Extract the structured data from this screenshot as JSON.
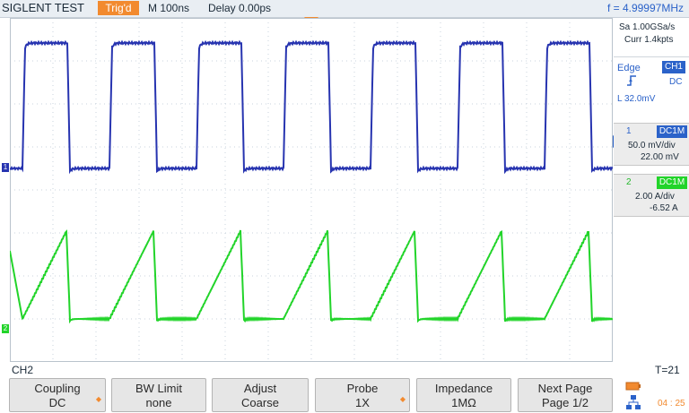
{
  "header": {
    "brand": "SIGLENT TEST",
    "trigger_state": "Trig'd",
    "timebase": "M 100ns",
    "delay": "Delay 0.00ps",
    "frequency": "f = 4.99997MHz"
  },
  "acquisition": {
    "sample_rate": "Sa 1.00GSa/s",
    "memory": "Curr 1.4kpts"
  },
  "trigger": {
    "type": "Edge",
    "source": "CH1",
    "coupling": "DC",
    "level": "L  32.0mV"
  },
  "channels": [
    {
      "number": "1",
      "coupling": "DC1M",
      "scale": "50.0 mV/div",
      "offset": "22.00 mV",
      "color": "#2734b0"
    },
    {
      "number": "2",
      "coupling": "DC1M",
      "scale": "2.00 A/div",
      "offset": "-6.52 A",
      "color": "#22d42a"
    }
  ],
  "colors": {
    "accent": "#f28a2f",
    "ch1": "#2734b0",
    "ch2": "#22d42a",
    "panel": "#2b62c9"
  },
  "status": {
    "active_channel": "CH2",
    "t_value": "T=21",
    "clock": "04 : 25"
  },
  "menu": [
    {
      "title": "Coupling",
      "value": "DC",
      "has_arrow": true
    },
    {
      "title": "BW Limit",
      "value": "none",
      "has_arrow": true
    },
    {
      "title": "Adjust",
      "value": "Coarse",
      "has_arrow": false
    },
    {
      "title": "Probe",
      "value": "1X",
      "has_arrow": true
    },
    {
      "title": "Impedance",
      "value": "1MΩ",
      "has_arrow": false
    },
    {
      "title": "Next Page",
      "value": "Page 1/2",
      "has_arrow": false
    }
  ]
}
